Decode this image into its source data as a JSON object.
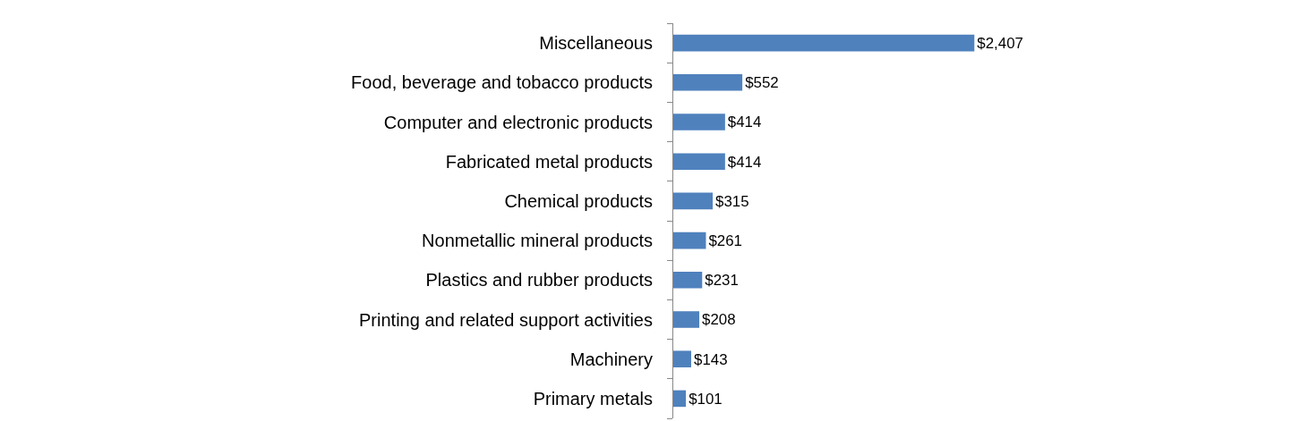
{
  "chart_data": {
    "type": "bar",
    "orientation": "horizontal",
    "categories": [
      "Miscellaneous",
      "Food, beverage and tobacco products",
      "Computer and electronic products",
      "Fabricated metal products",
      "Chemical products",
      "Nonmetallic mineral products",
      "Plastics and rubber products",
      "Printing and related support activities",
      "Machinery",
      "Primary metals"
    ],
    "values": [
      2407,
      552,
      414,
      414,
      315,
      261,
      231,
      208,
      143,
      101
    ],
    "value_labels": [
      "$2,407",
      "$552",
      "$414",
      "$414",
      "$315",
      "$261",
      "$231",
      "$208",
      "$143",
      "$101"
    ],
    "color": "#4f81bd",
    "tick_labels": "y"
  }
}
